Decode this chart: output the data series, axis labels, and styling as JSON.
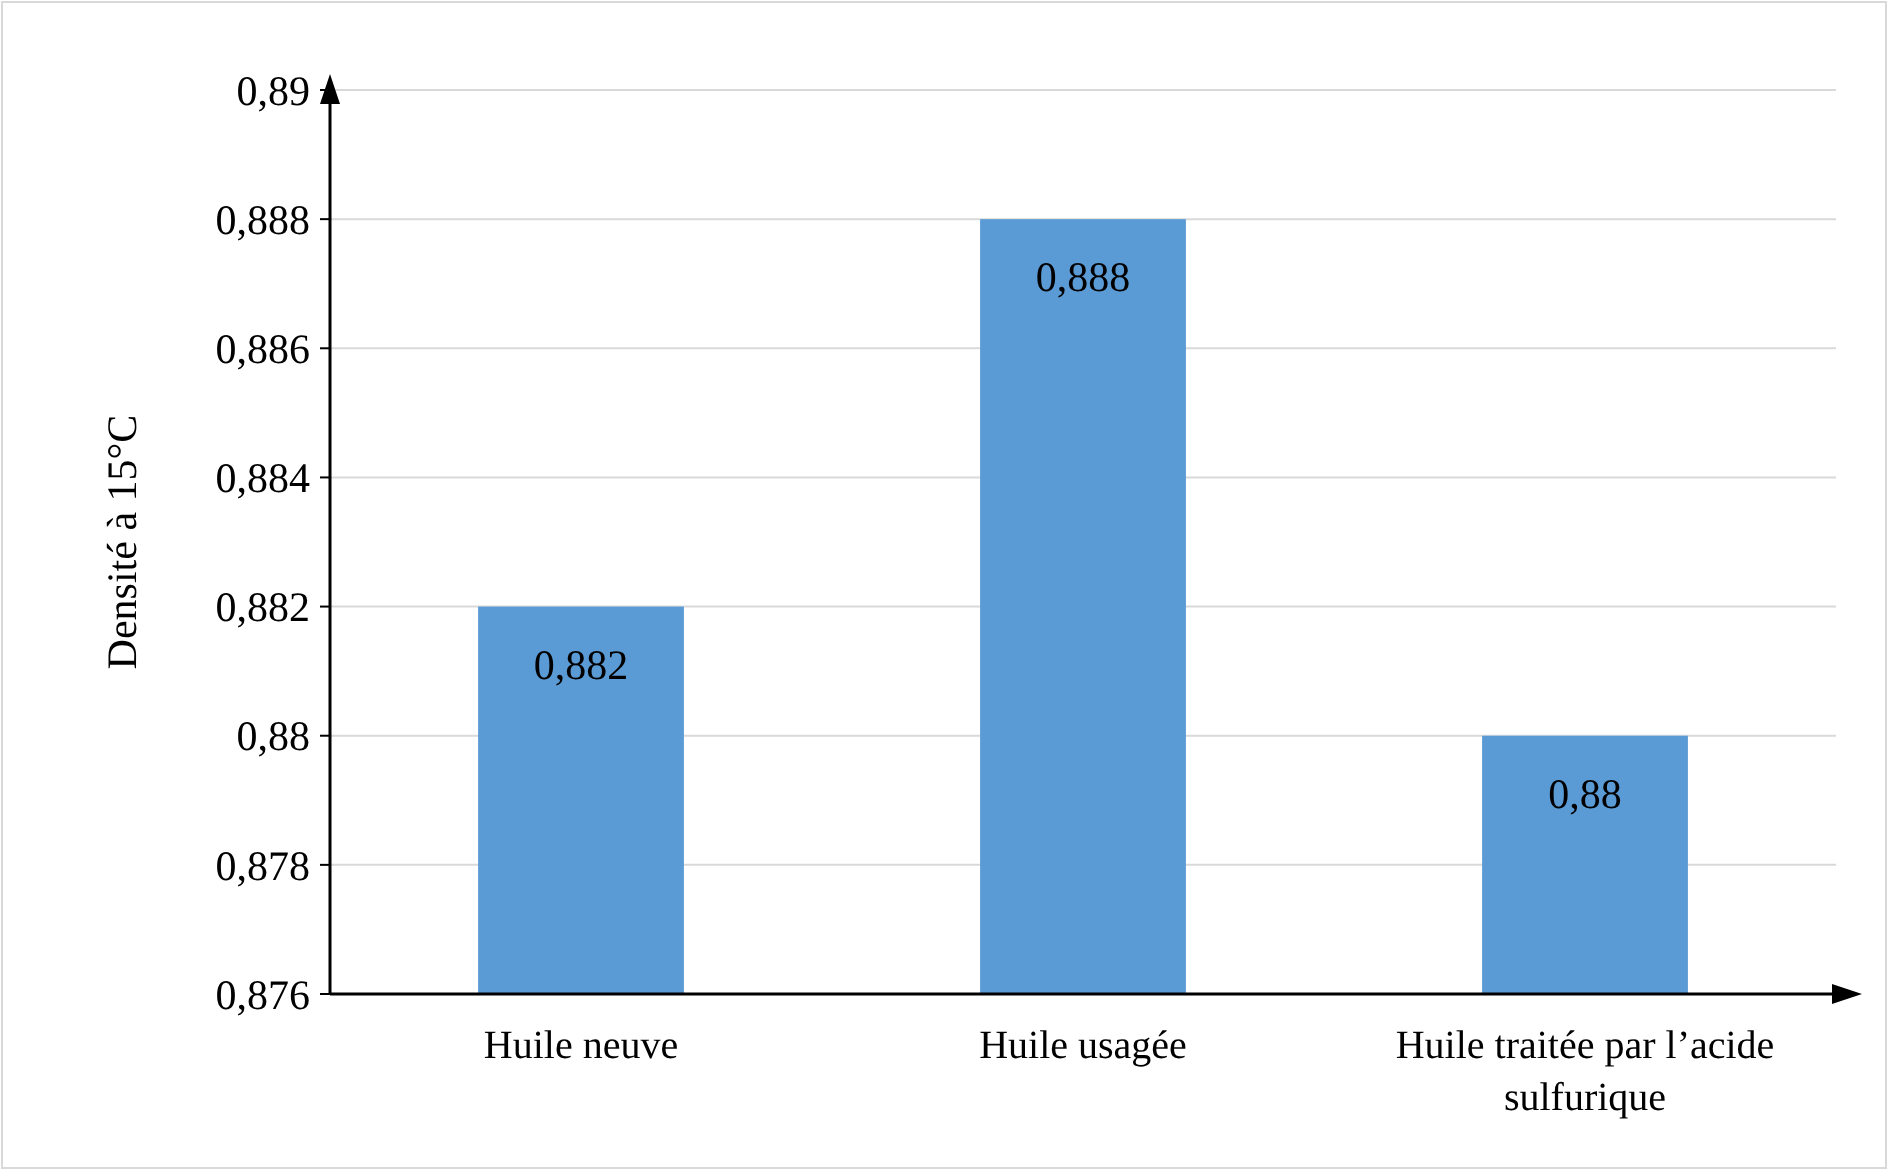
{
  "chart_data": {
    "type": "bar",
    "ylabel": "Densité à 15°C",
    "categories": [
      "Huile neuve",
      "Huile usagée",
      "Huile traitée par l’acide sulfurique"
    ],
    "values": [
      0.882,
      0.888,
      0.88
    ],
    "color": "#5b9bd5",
    "value_labels": [
      "0,882",
      "0,888",
      "0,88"
    ],
    "ylim": [
      0.876,
      0.89
    ],
    "yticks": [
      {
        "value": 0.876,
        "label": "0,876"
      },
      {
        "value": 0.878,
        "label": "0,878"
      },
      {
        "value": 0.88,
        "label": "0,88"
      },
      {
        "value": 0.882,
        "label": "0,882"
      },
      {
        "value": 0.884,
        "label": "0,884"
      },
      {
        "value": 0.886,
        "label": "0,886"
      },
      {
        "value": 0.888,
        "label": "0,888"
      },
      {
        "value": 0.89,
        "label": "0,89"
      }
    ],
    "grid": "y"
  }
}
